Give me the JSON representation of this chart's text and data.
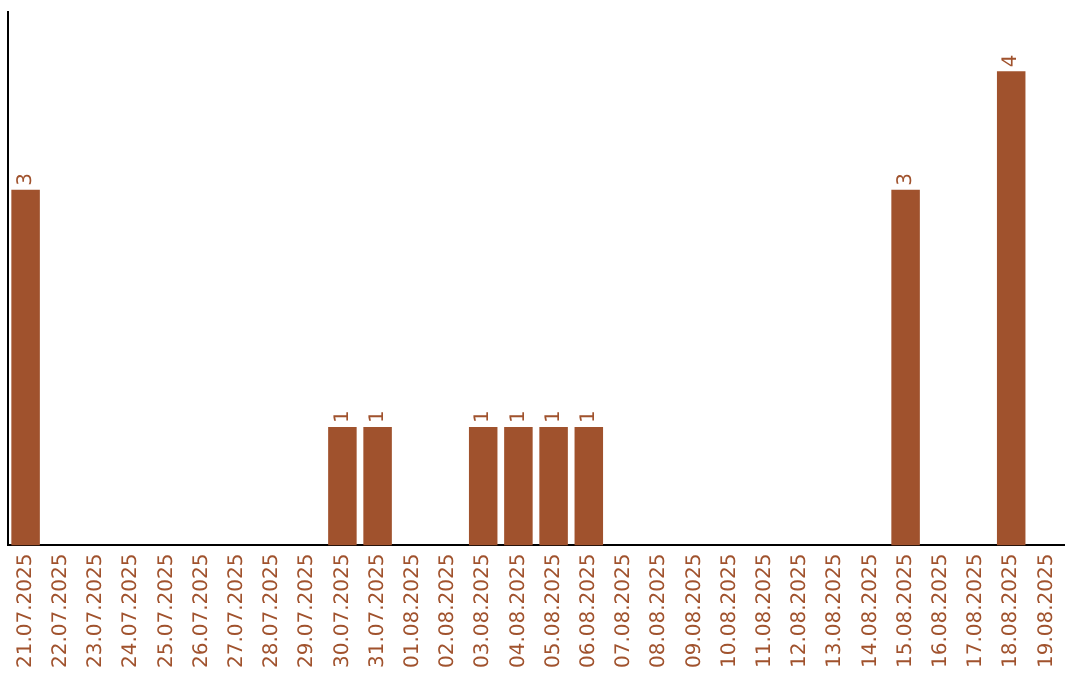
{
  "chart_data": {
    "type": "bar",
    "categories": [
      "21.07.2025",
      "22.07.2025",
      "23.07.2025",
      "24.07.2025",
      "25.07.2025",
      "26.07.2025",
      "27.07.2025",
      "28.07.2025",
      "29.07.2025",
      "30.07.2025",
      "31.07.2025",
      "01.08.2025",
      "02.08.2025",
      "03.08.2025",
      "04.08.2025",
      "05.08.2025",
      "06.08.2025",
      "07.08.2025",
      "08.08.2025",
      "09.08.2025",
      "10.08.2025",
      "11.08.2025",
      "12.08.2025",
      "13.08.2025",
      "14.08.2025",
      "15.08.2025",
      "16.08.2025",
      "17.08.2025",
      "18.08.2025",
      "19.08.2025"
    ],
    "values": [
      3,
      null,
      null,
      null,
      null,
      null,
      null,
      null,
      null,
      1,
      1,
      null,
      null,
      1,
      1,
      1,
      1,
      null,
      null,
      null,
      null,
      null,
      null,
      null,
      null,
      3,
      null,
      null,
      4,
      null
    ],
    "color": "#a0522d",
    "data_labels": true,
    "tick_labels": "x",
    "grid": false,
    "legend": false
  }
}
